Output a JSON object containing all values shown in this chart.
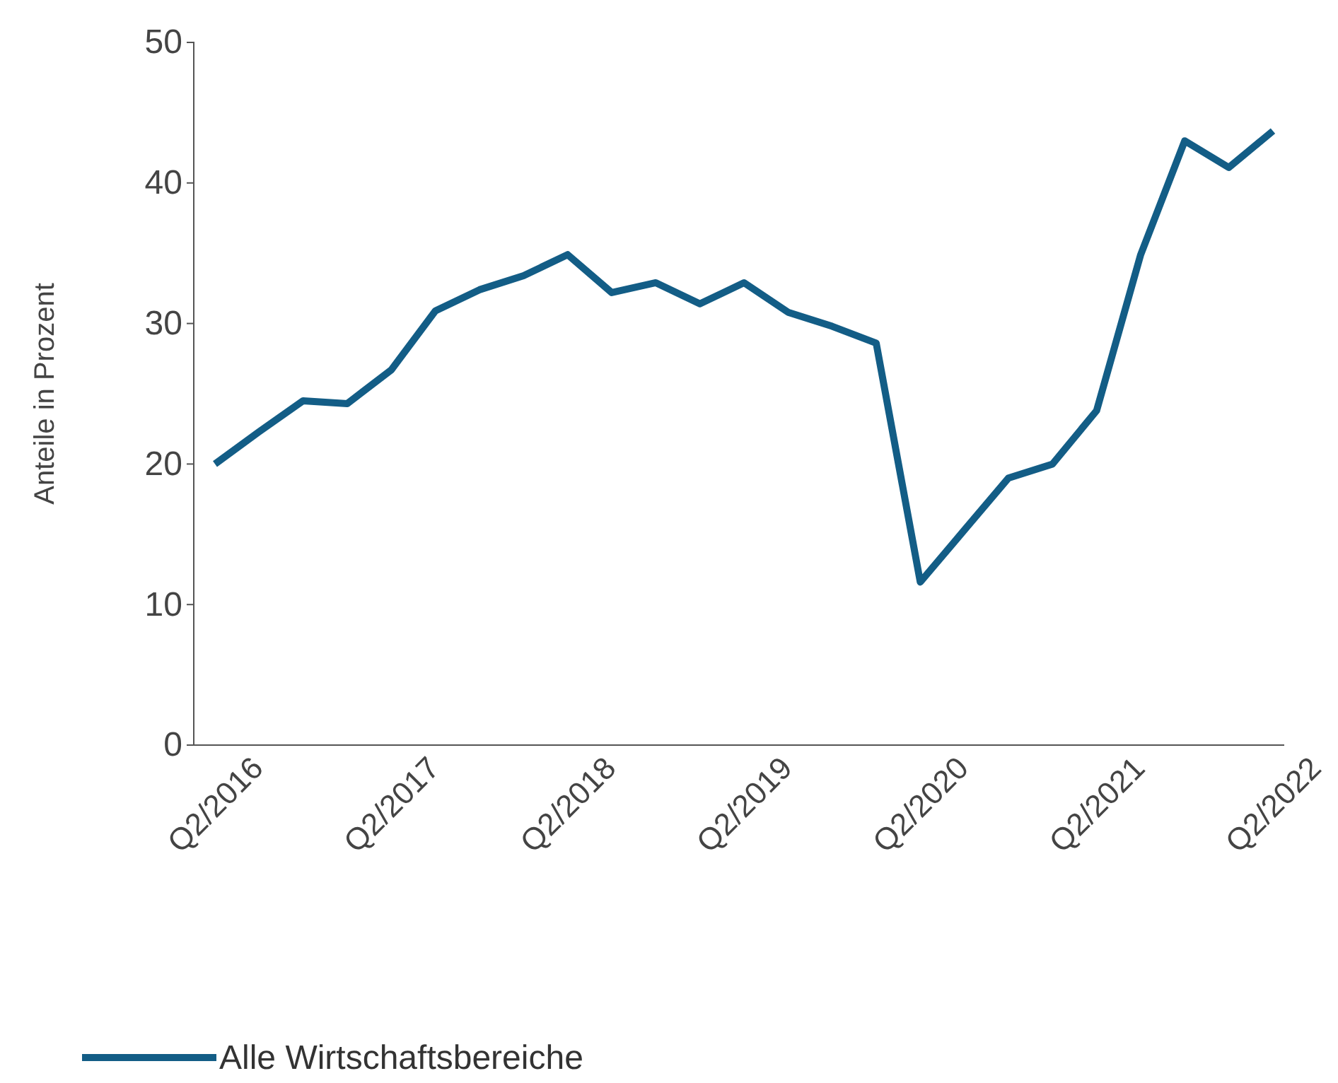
{
  "chart_data": {
    "type": "line",
    "ylabel": "Anteile in Prozent",
    "categories": [
      "Q2/2016",
      null,
      null,
      null,
      "Q2/2017",
      null,
      null,
      null,
      "Q2/2018",
      null,
      null,
      null,
      "Q2/2019",
      null,
      null,
      null,
      "Q2/2020",
      null,
      null,
      null,
      "Q2/2021",
      null,
      null,
      null,
      "Q2/2022"
    ],
    "series": [
      {
        "name": "Alle Wirtschaftsbereiche",
        "color": "#135d86",
        "values": [
          20.0,
          22.3,
          24.5,
          24.3,
          26.7,
          30.9,
          32.4,
          33.4,
          34.9,
          32.2,
          32.9,
          31.4,
          32.9,
          30.8,
          29.8,
          28.6,
          11.6,
          15.3,
          19.0,
          20.0,
          23.8,
          34.9,
          43.0,
          41.1,
          43.7
        ]
      }
    ],
    "ylim": [
      0,
      50
    ],
    "yticks": [
      0,
      10,
      20,
      30,
      40,
      50
    ],
    "grid": false,
    "legend": "bottom left",
    "marker": "none",
    "line_style": "solid"
  }
}
